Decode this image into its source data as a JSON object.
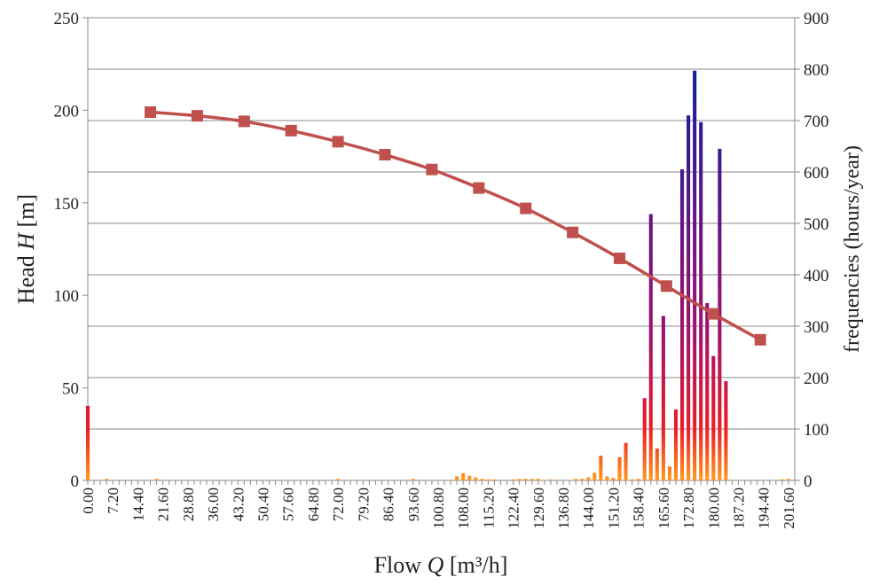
{
  "chart_data": {
    "type": "bar",
    "title": "",
    "xlabel": {
      "prefix": "Flow ",
      "var": "Q",
      "unit": " [m³/h]"
    },
    "ylabel_left": {
      "prefix": "Head ",
      "var": "H",
      "unit": " [m]"
    },
    "ylabel_right": "frequencies (hours/year)",
    "xlim": [
      0,
      203.4
    ],
    "ylim_left": [
      0,
      250
    ],
    "ylim_right": [
      0,
      900
    ],
    "grid": "horizontal (right axis)",
    "x_tick_labels": [
      "0.00",
      "7.20",
      "14.40",
      "21.60",
      "28.80",
      "36.00",
      "43.20",
      "50.40",
      "57.60",
      "64.80",
      "72.00",
      "79.20",
      "86.40",
      "93.60",
      "100.80",
      "108.00",
      "115.20",
      "122.40",
      "129.60",
      "136.80",
      "144.00",
      "151.20",
      "158.40",
      "165.60",
      "172.80",
      "180.00",
      "187.20",
      "194.40",
      "201.60"
    ],
    "y_left_ticks": [
      "0",
      "50",
      "100",
      "150",
      "200",
      "250"
    ],
    "y_right_ticks": [
      "0",
      "100",
      "200",
      "300",
      "400",
      "500",
      "600",
      "700",
      "800",
      "900"
    ],
    "series": [
      {
        "type": "bar",
        "axis": "right",
        "gradient": [
          "#ff9a1f",
          "#ee1c25",
          "#a0126e",
          "#1e1b9a"
        ],
        "x": [
          0,
          5.4,
          19.8,
          72,
          93.6,
          106.2,
          108,
          109.8,
          111.6,
          113.4,
          115.2,
          117,
          122.4,
          124.2,
          126,
          127.8,
          129.6,
          133.2,
          140.4,
          142.2,
          144,
          145.8,
          147.6,
          149.4,
          151.2,
          153,
          154.8,
          156.6,
          158.4,
          160.2,
          162,
          163.8,
          165.6,
          167.4,
          169.2,
          171,
          172.8,
          174.6,
          176.4,
          178.2,
          180,
          181.8,
          183.6,
          199.8,
          201.6
        ],
        "values": [
          145,
          3,
          3,
          3,
          3,
          8,
          14,
          9,
          6,
          3,
          2,
          2,
          2,
          3,
          3,
          3,
          3,
          2,
          3,
          3,
          6,
          15,
          48,
          8,
          5,
          45,
          73,
          2,
          3,
          160,
          518,
          62,
          320,
          27,
          138,
          605,
          710,
          797,
          697,
          345,
          242,
          645,
          193,
          2,
          3
        ]
      },
      {
        "type": "line",
        "axis": "left",
        "color": "#c0504d",
        "marker": "square",
        "x": [
          18,
          31.5,
          45,
          58.5,
          72,
          85.5,
          99,
          112.5,
          126,
          139.5,
          153,
          166.5,
          180,
          193.5
        ],
        "values": [
          199,
          197,
          194,
          189,
          183,
          176,
          168,
          158,
          147,
          134,
          120,
          105,
          90,
          76
        ]
      }
    ]
  }
}
